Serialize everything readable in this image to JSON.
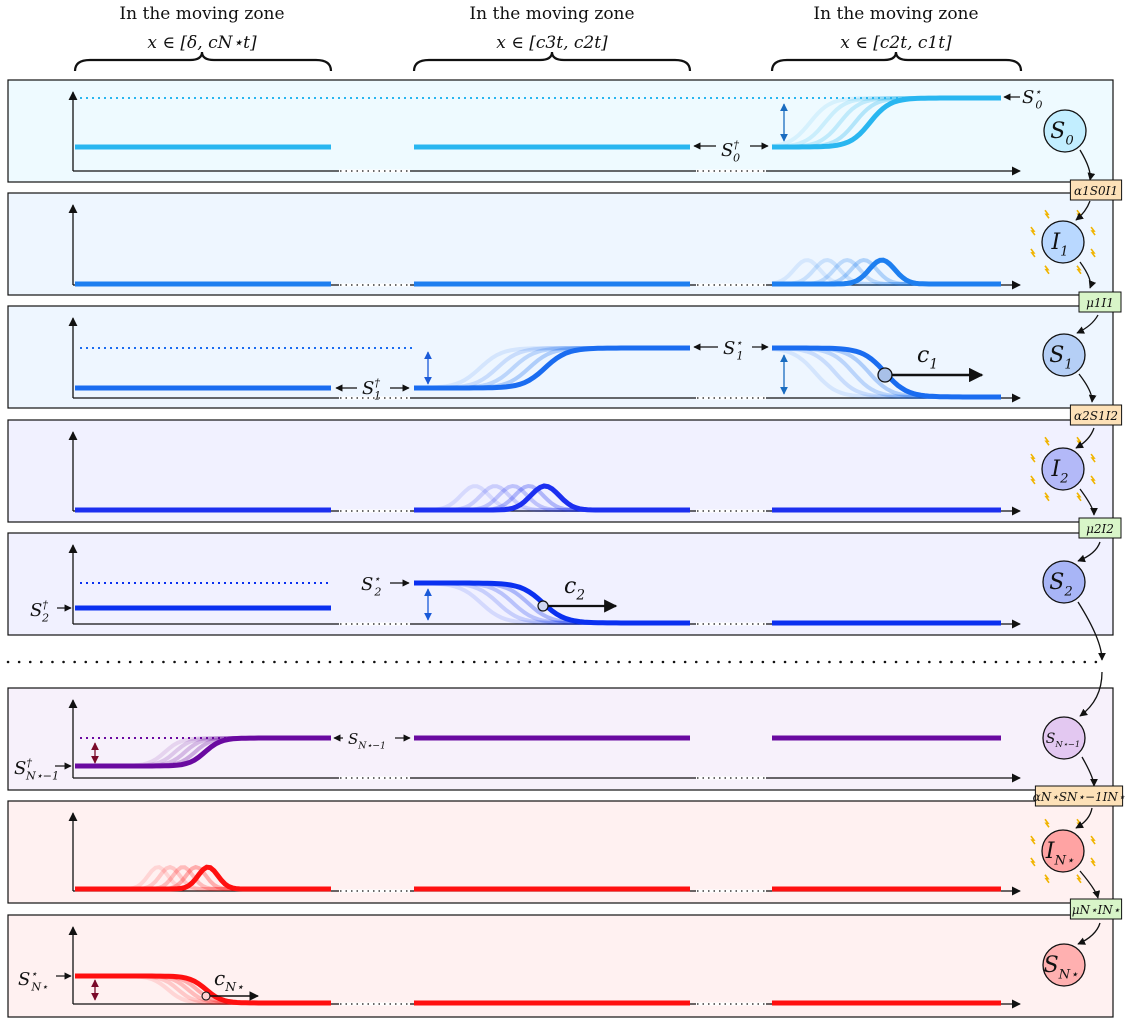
{
  "headers": [
    {
      "title": "In the moving zone",
      "interval": "x ∈ [δ, cN⋆t]"
    },
    {
      "title": "In the moving zone",
      "interval": "x ∈ [c3t, c2t]"
    },
    {
      "title": "In the moving zone",
      "interval": "x ∈ [c2t, c1t]"
    }
  ],
  "colors": {
    "S0": "#29b6f0",
    "I1": "#1e7ff0",
    "S1": "#1a6cf0",
    "I2": "#1c2ff0",
    "S2": "#0a30f0",
    "SN1": "#6a0aa0",
    "IN": "#ff1010",
    "SN": "#ff1010",
    "bg_S0": "#eefaff",
    "bg_I1": "#eef6ff",
    "bg_S1": "#eef6ff",
    "bg_I2": "#f1f1ff",
    "bg_S2": "#f1f1ff",
    "bg_SN1": "#f7f1fb",
    "bg_IN": "#fff1f1",
    "bg_SN": "#fff1f1",
    "rate_bg_infection": "#fde1b8",
    "rate_bg_recovery": "#d8f5c8",
    "node_S0": "#c2eeff",
    "node_I1": "#b9d8ff",
    "node_S1": "#b5cff6",
    "node_I2": "#b3b9f8",
    "node_S2": "#a8b5f6",
    "node_SN1": "#e3c8f1",
    "node_IN": "#ffa3a3",
    "node_SN": "#ffb0b0"
  },
  "nodes": {
    "S0": {
      "main": "S",
      "sub": "0"
    },
    "I1": {
      "main": "I",
      "sub": "1"
    },
    "S1": {
      "main": "S",
      "sub": "1"
    },
    "I2": {
      "main": "I",
      "sub": "2"
    },
    "S2": {
      "main": "S",
      "sub": "2"
    },
    "SN1": {
      "main": "S",
      "sub": "N⋆−1"
    },
    "IN": {
      "main": "I",
      "sub": "N⋆"
    },
    "SN": {
      "main": "S",
      "sub": "N⋆"
    }
  },
  "rates": {
    "r1": "α1S0I1",
    "r2": "μ1I1",
    "r3": "α2S1I2",
    "r4": "μ2I2",
    "r5": "αN⋆SN⋆−1IN⋆",
    "r6": "μN⋆IN⋆"
  },
  "annotations": {
    "S0_star": {
      "main": "S",
      "sup": "⋆",
      "sub": "0"
    },
    "S0_dag": {
      "main": "S",
      "sup": "†",
      "sub": "0"
    },
    "S1_star": {
      "main": "S",
      "sup": "⋆",
      "sub": "1"
    },
    "S1_dag": {
      "main": "S",
      "sup": "†",
      "sub": "1"
    },
    "S2_star": {
      "main": "S",
      "sup": "⋆",
      "sub": "2"
    },
    "S2_dag": {
      "main": "S",
      "sup": "†",
      "sub": "2"
    },
    "SN1_dag": {
      "main": "S",
      "sup": "†",
      "sub": "N⋆−1"
    },
    "SN1_plain": {
      "main": "S",
      "sub": "N⋆−1"
    },
    "SN_star": {
      "main": "S",
      "sup": "⋆",
      "sub": "N⋆"
    },
    "c1": {
      "main": "c",
      "sub": "1"
    },
    "c2": {
      "main": "c",
      "sub": "2"
    },
    "cN": {
      "main": "c",
      "sub": "N⋆"
    }
  }
}
